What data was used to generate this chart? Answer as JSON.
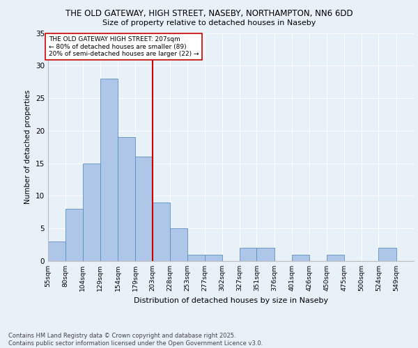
{
  "title_line1": "THE OLD GATEWAY, HIGH STREET, NASEBY, NORTHAMPTON, NN6 6DD",
  "title_line2": "Size of property relative to detached houses in Naseby",
  "xlabel": "Distribution of detached houses by size in Naseby",
  "ylabel": "Number of detached properties",
  "bin_labels": [
    "55sqm",
    "80sqm",
    "104sqm",
    "129sqm",
    "154sqm",
    "179sqm",
    "203sqm",
    "228sqm",
    "253sqm",
    "277sqm",
    "302sqm",
    "327sqm",
    "351sqm",
    "376sqm",
    "401sqm",
    "426sqm",
    "450sqm",
    "475sqm",
    "500sqm",
    "524sqm",
    "549sqm"
  ],
  "bin_edges": [
    55,
    80,
    104,
    129,
    154,
    179,
    203,
    228,
    253,
    277,
    302,
    327,
    351,
    376,
    401,
    426,
    450,
    475,
    500,
    524,
    549,
    574
  ],
  "bar_heights": [
    3,
    8,
    15,
    28,
    19,
    16,
    9,
    5,
    1,
    1,
    0,
    2,
    2,
    0,
    1,
    0,
    1,
    0,
    0,
    2,
    0
  ],
  "bar_color": "#aec6e8",
  "bar_edge_color": "#5a8fc0",
  "vline_x": 203,
  "vline_color": "#cc0000",
  "annotation_text": "THE OLD GATEWAY HIGH STREET: 207sqm\n← 80% of detached houses are smaller (89)\n20% of semi-detached houses are larger (22) →",
  "annotation_box_color": "#ffffff",
  "annotation_box_edge_color": "#cc0000",
  "ylim": [
    0,
    35
  ],
  "yticks": [
    0,
    5,
    10,
    15,
    20,
    25,
    30,
    35
  ],
  "background_color": "#e8f0f8",
  "grid_color": "#ffffff",
  "footer_text": "Contains HM Land Registry data © Crown copyright and database right 2025.\nContains public sector information licensed under the Open Government Licence v3.0."
}
